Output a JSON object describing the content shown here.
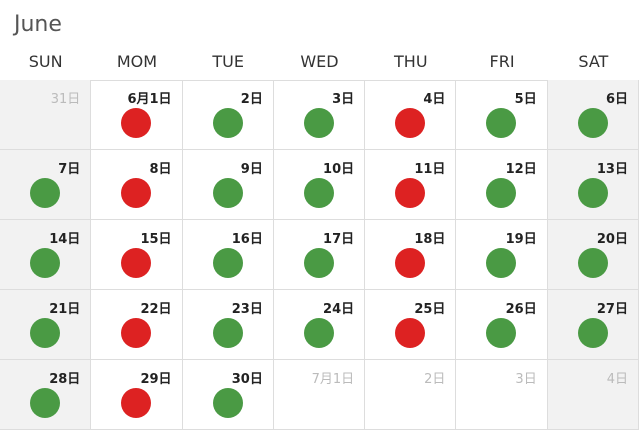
{
  "header": {
    "title": "June"
  },
  "weekdays": [
    "SUN",
    "MOM",
    "TUE",
    "WED",
    "THU",
    "FRI",
    "SAT"
  ],
  "weekend_columns": [
    0,
    6
  ],
  "weeks": [
    [
      {
        "label": "31日",
        "muted": true
      },
      {
        "label": "6月1日",
        "dot": "#dd2222"
      },
      {
        "label": "2日",
        "dot": "#4a9a44"
      },
      {
        "label": "3日",
        "dot": "#4a9a44"
      },
      {
        "label": "4日",
        "dot": "#dd2222"
      },
      {
        "label": "5日",
        "dot": "#4a9a44"
      },
      {
        "label": "6日",
        "dot": "#4a9a44"
      }
    ],
    [
      {
        "label": "7日",
        "dot": "#4a9a44"
      },
      {
        "label": "8日",
        "dot": "#dd2222"
      },
      {
        "label": "9日",
        "dot": "#4a9a44"
      },
      {
        "label": "10日",
        "dot": "#4a9a44"
      },
      {
        "label": "11日",
        "dot": "#dd2222"
      },
      {
        "label": "12日",
        "dot": "#4a9a44"
      },
      {
        "label": "13日",
        "dot": "#4a9a44"
      }
    ],
    [
      {
        "label": "14日",
        "dot": "#4a9a44"
      },
      {
        "label": "15日",
        "dot": "#dd2222"
      },
      {
        "label": "16日",
        "dot": "#4a9a44"
      },
      {
        "label": "17日",
        "dot": "#4a9a44"
      },
      {
        "label": "18日",
        "dot": "#dd2222"
      },
      {
        "label": "19日",
        "dot": "#4a9a44"
      },
      {
        "label": "20日",
        "dot": "#4a9a44"
      }
    ],
    [
      {
        "label": "21日",
        "dot": "#4a9a44"
      },
      {
        "label": "22日",
        "dot": "#dd2222"
      },
      {
        "label": "23日",
        "dot": "#4a9a44"
      },
      {
        "label": "24日",
        "dot": "#4a9a44"
      },
      {
        "label": "25日",
        "dot": "#dd2222"
      },
      {
        "label": "26日",
        "dot": "#4a9a44"
      },
      {
        "label": "27日",
        "dot": "#4a9a44"
      }
    ],
    [
      {
        "label": "28日",
        "dot": "#4a9a44"
      },
      {
        "label": "29日",
        "dot": "#dd2222"
      },
      {
        "label": "30日",
        "dot": "#4a9a44"
      },
      {
        "label": "7月1日",
        "muted": true
      },
      {
        "label": "2日",
        "muted": true
      },
      {
        "label": "3日",
        "muted": true
      },
      {
        "label": "4日",
        "muted": true
      }
    ]
  ]
}
